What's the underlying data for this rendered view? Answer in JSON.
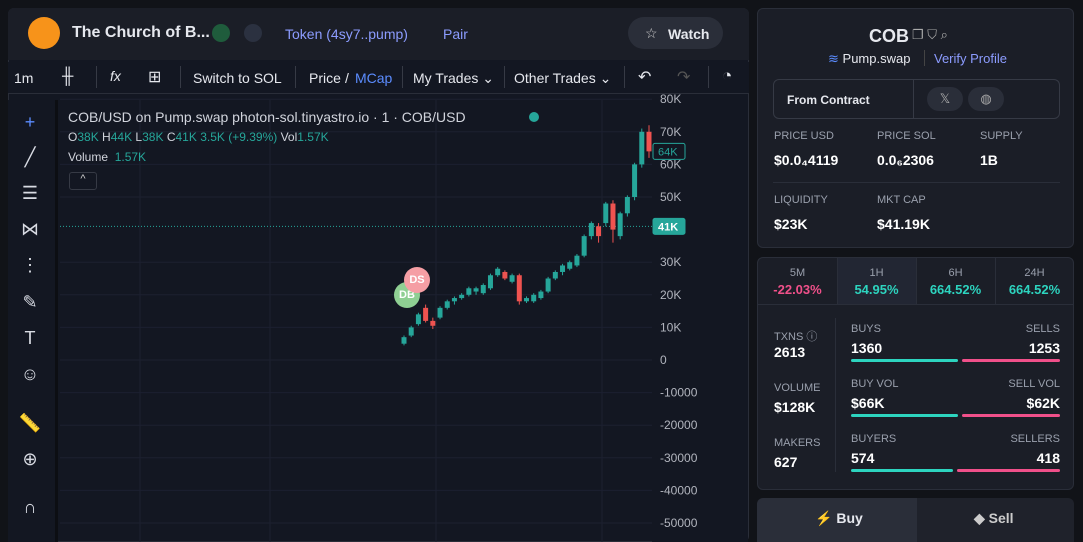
{
  "header": {
    "title": "The Church of B...",
    "token": "Token (4sy7..pump)",
    "pair": "Pair",
    "watch": "Watch"
  },
  "toolbar": {
    "interval": "1m",
    "switch": "Switch to SOL",
    "price": "Price",
    "slash": "/",
    "mcap": "MCap",
    "my_trades": "My Trades",
    "other_trades": "Other Trades"
  },
  "chart": {
    "legend": "COB/USD on Pump.swap photon-sol.tinyastro.io · 1 · COB/USD",
    "ohlc": {
      "o_label": "O",
      "o": "38K",
      "h_label": "H",
      "h": "44K",
      "l_label": "L",
      "l": "38K",
      "c_label": "C",
      "c": "41K",
      "change": "3.5K (+9.39%)",
      "vol_label": "Vol",
      "vol": "1.57K"
    },
    "volume_label": "Volume",
    "volume": "1.57K",
    "markers": [
      "DS",
      "DB"
    ],
    "yticks": [
      {
        "value": 80000,
        "label": "80K"
      },
      {
        "value": 70000,
        "label": "70K"
      },
      {
        "value": 60000,
        "label": "60K"
      },
      {
        "value": 50000,
        "label": "50K"
      },
      {
        "value": 30000,
        "label": "30K"
      },
      {
        "value": 20000,
        "label": "20K"
      },
      {
        "value": 10000,
        "label": "10K"
      },
      0,
      -10000,
      -20000,
      -30000,
      -40000,
      -50000
    ],
    "price_lines": [
      {
        "value": 64000,
        "label": "64K"
      },
      {
        "value": 41000,
        "label": "41K"
      }
    ],
    "candles": [
      {
        "o": 5000,
        "h": 7500,
        "l": 4500,
        "c": 7000
      },
      {
        "o": 7500,
        "h": 10500,
        "l": 7000,
        "c": 10000
      },
      {
        "o": 11000,
        "h": 14500,
        "l": 10500,
        "c": 14000
      },
      {
        "o": 16000,
        "h": 17000,
        "l": 11500,
        "c": 12000
      },
      {
        "o": 12000,
        "h": 13000,
        "l": 9500,
        "c": 10500
      },
      {
        "o": 13000,
        "h": 16500,
        "l": 12500,
        "c": 16000
      },
      {
        "o": 16000,
        "h": 18500,
        "l": 15500,
        "c": 18000
      },
      {
        "o": 18000,
        "h": 19500,
        "l": 17000,
        "c": 19000
      },
      {
        "o": 19000,
        "h": 20500,
        "l": 18500,
        "c": 20000
      },
      {
        "o": 20000,
        "h": 22500,
        "l": 19500,
        "c": 22000
      },
      {
        "o": 21000,
        "h": 22500,
        "l": 20000,
        "c": 22000
      },
      {
        "o": 20500,
        "h": 23500,
        "l": 20000,
        "c": 23000
      },
      {
        "o": 22000,
        "h": 26500,
        "l": 21500,
        "c": 26000
      },
      {
        "o": 26000,
        "h": 28500,
        "l": 25500,
        "c": 28000
      },
      {
        "o": 27000,
        "h": 27500,
        "l": 24500,
        "c": 25000
      },
      {
        "o": 24000,
        "h": 26500,
        "l": 23500,
        "c": 26000
      },
      {
        "o": 26000,
        "h": 26500,
        "l": 17000,
        "c": 18000
      },
      {
        "o": 18000,
        "h": 19500,
        "l": 17500,
        "c": 19000
      },
      {
        "o": 18000,
        "h": 20500,
        "l": 17500,
        "c": 20000
      },
      {
        "o": 19000,
        "h": 21500,
        "l": 18500,
        "c": 21000
      },
      {
        "o": 21000,
        "h": 25500,
        "l": 20500,
        "c": 25000
      },
      {
        "o": 25000,
        "h": 27500,
        "l": 24500,
        "c": 27000
      },
      {
        "o": 27000,
        "h": 29500,
        "l": 26000,
        "c": 29000
      },
      {
        "o": 28000,
        "h": 30500,
        "l": 27500,
        "c": 30000
      },
      {
        "o": 29000,
        "h": 32500,
        "l": 28500,
        "c": 32000
      },
      {
        "o": 32000,
        "h": 38500,
        "l": 31500,
        "c": 38000
      },
      {
        "o": 38000,
        "h": 42500,
        "l": 37000,
        "c": 42000
      },
      {
        "o": 41000,
        "h": 42000,
        "l": 36000,
        "c": 38000
      },
      {
        "o": 42000,
        "h": 48500,
        "l": 41000,
        "c": 48000
      },
      {
        "o": 48000,
        "h": 49000,
        "l": 36000,
        "c": 40000
      },
      {
        "o": 38000,
        "h": 45500,
        "l": 37000,
        "c": 45000
      },
      {
        "o": 45000,
        "h": 50500,
        "l": 44000,
        "c": 50000
      },
      {
        "o": 50000,
        "h": 60500,
        "l": 49000,
        "c": 60000
      },
      {
        "o": 60000,
        "h": 71000,
        "l": 59000,
        "c": 70000
      },
      {
        "o": 70000,
        "h": 72000,
        "l": 62000,
        "c": 64000
      }
    ]
  },
  "profile": {
    "symbol": "COB",
    "dex": "Pump.swap",
    "verify": "Verify Profile",
    "from_contract": "From Contract"
  },
  "stats": [
    {
      "label": "PRICE USD",
      "value": "$0.0₄4119"
    },
    {
      "label": "PRICE SOL",
      "value": "0.0₆2306"
    },
    {
      "label": "SUPPLY",
      "value": "1B"
    },
    {
      "label": "LIQUIDITY",
      "value": "$23K"
    },
    {
      "label": "MKT CAP",
      "value": "$41.19K"
    }
  ],
  "timeframes": [
    {
      "label": "5M",
      "value": "-22.03%"
    },
    {
      "label": "1H",
      "value": "54.95%"
    },
    {
      "label": "6H",
      "value": "664.52%"
    },
    {
      "label": "24H",
      "value": "664.52%"
    }
  ],
  "trades": {
    "txns_label": "TXNS",
    "txns": 2613,
    "buys_label": "BUYS",
    "buys": 1360,
    "sells_label": "SELLS",
    "sells": 1253,
    "volume_label": "VOLUME",
    "volume": "$128K",
    "buy_vol_label": "BUY VOL",
    "buy_vol": "$66K",
    "sell_vol_label": "SELL VOL",
    "sell_vol": "$62K",
    "makers_label": "MAKERS",
    "makers": 627,
    "buyers_label": "BUYERS",
    "buyers": 574,
    "sellers_label": "SELLERS",
    "sellers": 418
  },
  "actions": {
    "buy": "Buy",
    "sell": "Sell"
  }
}
